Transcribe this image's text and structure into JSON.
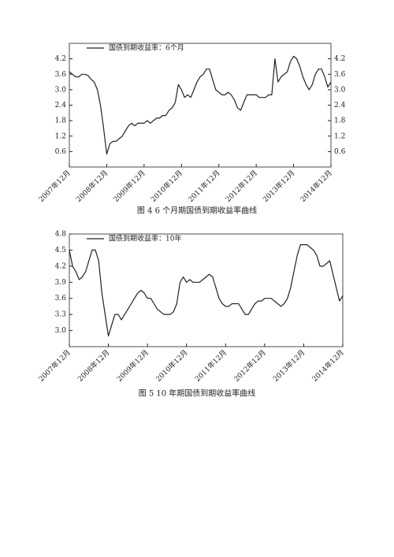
{
  "chart_data": [
    {
      "type": "line",
      "caption": "图 4 6 个月期国债到期收益率曲线",
      "categories": [
        "2007年12月",
        null,
        null,
        null,
        null,
        null,
        null,
        null,
        null,
        null,
        null,
        null,
        "2008年12月",
        null,
        null,
        null,
        null,
        null,
        null,
        null,
        null,
        null,
        null,
        null,
        "2009年12月",
        null,
        null,
        null,
        null,
        null,
        null,
        null,
        null,
        null,
        null,
        null,
        "2010年12月",
        null,
        null,
        null,
        null,
        null,
        null,
        null,
        null,
        null,
        null,
        null,
        "2011年12月",
        null,
        null,
        null,
        null,
        null,
        null,
        null,
        null,
        null,
        null,
        null,
        "2012年12月",
        null,
        null,
        null,
        null,
        null,
        null,
        null,
        null,
        null,
        null,
        null,
        "2013年12月",
        null,
        null,
        null,
        null,
        null,
        null,
        null,
        null,
        null,
        null,
        null,
        "2014年12月"
      ],
      "series": [
        {
          "name": "国债到期收益率：6个月",
          "color": "#222222",
          "values": [
            3.7,
            3.6,
            3.5,
            3.5,
            3.6,
            3.6,
            3.55,
            3.4,
            3.3,
            3.0,
            2.4,
            1.5,
            0.5,
            0.9,
            1.0,
            1.0,
            1.1,
            1.2,
            1.4,
            1.6,
            1.7,
            1.6,
            1.7,
            1.7,
            1.7,
            1.8,
            1.7,
            1.8,
            1.9,
            1.9,
            2.0,
            2.0,
            2.2,
            2.3,
            2.5,
            3.2,
            3.0,
            2.7,
            2.8,
            2.7,
            3.0,
            3.3,
            3.5,
            3.6,
            3.8,
            3.8,
            3.4,
            3.0,
            2.9,
            2.8,
            2.8,
            2.9,
            2.8,
            2.6,
            2.3,
            2.2,
            2.5,
            2.8,
            2.8,
            2.8,
            2.8,
            2.7,
            2.7,
            2.7,
            2.8,
            2.8,
            4.2,
            3.3,
            3.5,
            3.6,
            3.7,
            4.1,
            4.3,
            4.2,
            3.9,
            3.5,
            3.2,
            3.0,
            3.2,
            3.6,
            3.8,
            3.8,
            3.5,
            3.1,
            3.3
          ]
        }
      ],
      "ylim": [
        0,
        4.8
      ],
      "yticks": [
        0.6,
        1.2,
        1.8,
        2.4,
        {
          "value": 3,
          "label": "3.0"
        },
        3.6,
        4.2
      ],
      "y2lim": [
        0,
        4.8
      ],
      "y2ticks": [
        0.6,
        1.2,
        1.8,
        2.4,
        {
          "value": 3,
          "label": "3.0"
        },
        3.6,
        4.2
      ]
    },
    {
      "type": "line",
      "caption": "图 5 10 年期国债到期收益率曲线",
      "categories": [
        "2007年12月",
        null,
        null,
        null,
        null,
        null,
        null,
        null,
        null,
        null,
        null,
        null,
        "2008年12月",
        null,
        null,
        null,
        null,
        null,
        null,
        null,
        null,
        null,
        null,
        null,
        "2009年12月",
        null,
        null,
        null,
        null,
        null,
        null,
        null,
        null,
        null,
        null,
        null,
        "2010年12月",
        null,
        null,
        null,
        null,
        null,
        null,
        null,
        null,
        null,
        null,
        null,
        "2011年12月",
        null,
        null,
        null,
        null,
        null,
        null,
        null,
        null,
        null,
        null,
        null,
        "2012年12月",
        null,
        null,
        null,
        null,
        null,
        null,
        null,
        null,
        null,
        null,
        null,
        "2013年12月",
        null,
        null,
        null,
        null,
        null,
        null,
        null,
        null,
        null,
        null,
        null,
        "2014年12月"
      ],
      "series": [
        {
          "name": "国债到期收益率：10年",
          "color": "#222222",
          "values": [
            4.5,
            4.2,
            4.1,
            3.95,
            4.0,
            4.1,
            4.3,
            4.5,
            4.5,
            4.3,
            3.7,
            3.3,
            2.9,
            3.1,
            3.3,
            3.3,
            3.2,
            3.3,
            3.4,
            3.5,
            3.6,
            3.7,
            3.75,
            3.7,
            3.6,
            3.6,
            3.5,
            3.4,
            3.35,
            3.3,
            3.3,
            3.3,
            3.35,
            3.5,
            3.9,
            4.0,
            3.9,
            3.95,
            3.9,
            3.9,
            3.9,
            3.95,
            4.0,
            4.05,
            4.0,
            3.8,
            3.6,
            3.5,
            3.45,
            3.45,
            3.5,
            3.5,
            3.5,
            3.4,
            3.3,
            3.3,
            3.4,
            3.5,
            3.55,
            3.55,
            3.6,
            3.6,
            3.6,
            3.55,
            3.5,
            3.45,
            3.5,
            3.6,
            3.8,
            4.1,
            4.4,
            4.6,
            4.6,
            4.6,
            4.55,
            4.5,
            4.4,
            4.2,
            4.2,
            4.25,
            4.3,
            4.05,
            3.8,
            3.55,
            3.65
          ]
        }
      ],
      "ylim": [
        2.7,
        4.8
      ],
      "yticks": [
        {
          "value": 3,
          "label": "3.0"
        },
        3.3,
        3.6,
        3.9,
        4.2,
        4.5,
        4.8
      ]
    }
  ]
}
